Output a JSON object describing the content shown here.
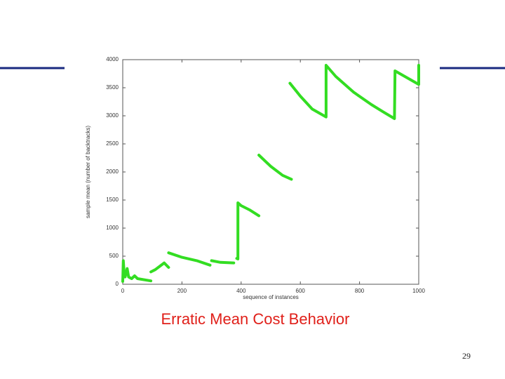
{
  "chart_data": {
    "type": "line",
    "title": "Erratic Mean Cost Behavior",
    "x_label": "sequence of instances",
    "y_label": "sample mean (number of backtracks)",
    "x": [
      0,
      2,
      5,
      8,
      15,
      20,
      30,
      40,
      50,
      95,
      95,
      95,
      110,
      125,
      140,
      155,
      155,
      155,
      200,
      250,
      295,
      295,
      300,
      330,
      375,
      375,
      385,
      389,
      389,
      400,
      430,
      460,
      460,
      460,
      500,
      540,
      570,
      570,
      565,
      600,
      640,
      687,
      687,
      720,
      780,
      840,
      880,
      918,
      920,
      960,
      1000,
      1000
    ],
    "values": [
      50,
      420,
      180,
      130,
      280,
      130,
      100,
      150,
      100,
      60,
      null,
      220,
      260,
      320,
      380,
      300,
      null,
      560,
      480,
      420,
      340,
      null,
      420,
      390,
      380,
      null,
      460,
      450,
      1450,
      1400,
      1320,
      1220,
      null,
      2300,
      2100,
      1940,
      1870,
      null,
      3580,
      3350,
      3120,
      2980,
      3900,
      3700,
      3420,
      3200,
      3070,
      2950,
      3800,
      3680,
      3560,
      3900
    ],
    "color": "#33dd22",
    "xlim": [
      0,
      1000
    ],
    "xticks": [
      0,
      200,
      400,
      600,
      800,
      1000
    ],
    "ylim": [
      0,
      4000
    ],
    "yticks": [
      0,
      500,
      1000,
      1500,
      2000,
      2500,
      3000,
      3500,
      4000
    ],
    "grid": false
  },
  "page_number": "29"
}
